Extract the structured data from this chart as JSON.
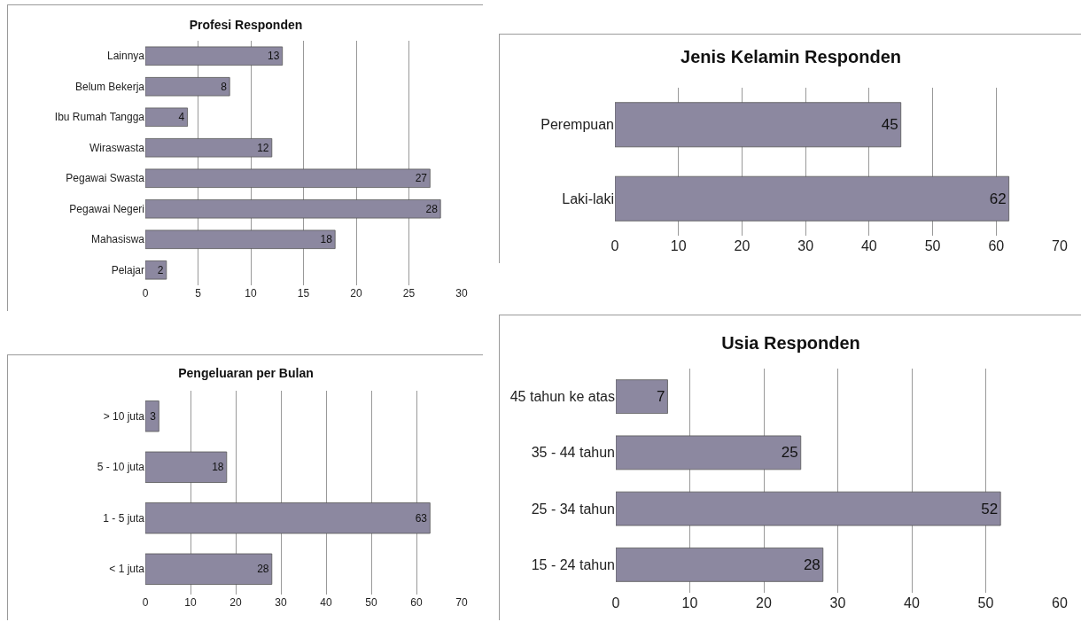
{
  "chart_data": [
    {
      "type": "bar",
      "title": "Profesi Responden",
      "orientation": "horizontal",
      "categories": [
        "Lainnya",
        "Belum Bekerja",
        "Ibu Rumah Tangga",
        "Wiraswasta",
        "Pegawai Swasta",
        "Pegawai Negeri",
        "Mahasiswa",
        "Pelajar"
      ],
      "values": [
        13,
        8,
        4,
        12,
        27,
        28,
        18,
        2
      ],
      "color": "#8c88a0",
      "xlim": [
        0,
        30
      ],
      "xticks": [
        0,
        5,
        10,
        15,
        20,
        25,
        30
      ],
      "grid": "x",
      "data_labels": true
    },
    {
      "type": "bar",
      "title": "Jenis Kelamin Responden",
      "orientation": "horizontal",
      "categories": [
        "Perempuan",
        "Laki-laki"
      ],
      "values": [
        45,
        62
      ],
      "color": "#8c88a0",
      "xlim": [
        0,
        70
      ],
      "xticks": [
        0,
        10,
        20,
        30,
        40,
        50,
        60,
        70
      ],
      "grid": "x",
      "data_labels": true
    },
    {
      "type": "bar",
      "title": "Pengeluaran per Bulan",
      "orientation": "horizontal",
      "categories": [
        "> 10 juta",
        "5 - 10 juta",
        "1 - 5 juta",
        "< 1 juta"
      ],
      "values": [
        3,
        18,
        63,
        28
      ],
      "color": "#8c88a0",
      "xlim": [
        0,
        70
      ],
      "xticks": [
        0,
        10,
        20,
        30,
        40,
        50,
        60,
        70
      ],
      "grid": "x",
      "data_labels": true
    },
    {
      "type": "bar",
      "title": "Usia Responden",
      "orientation": "horizontal",
      "categories": [
        "45 tahun ke atas",
        "35 - 44 tahun",
        "25 - 34 tahun",
        "15 - 24 tahun"
      ],
      "values": [
        7,
        25,
        52,
        28
      ],
      "color": "#8c88a0",
      "xlim": [
        0,
        60
      ],
      "xticks": [
        0,
        10,
        20,
        30,
        40,
        50,
        60
      ],
      "grid": "x",
      "data_labels": true
    }
  ]
}
